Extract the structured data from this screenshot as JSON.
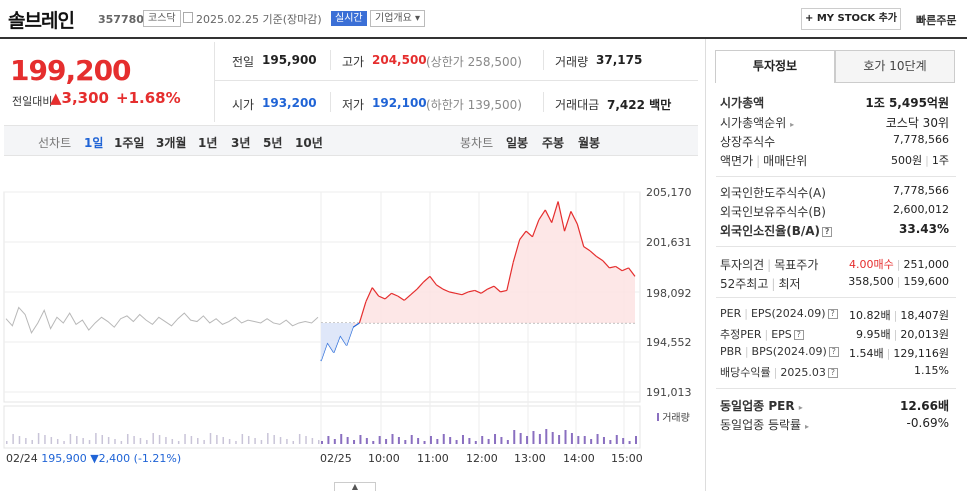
{
  "header": {
    "name": "솔브레인",
    "code": "357780",
    "market": "코스닥",
    "date_text": "2025.02.25 기준(장마감)",
    "live_label": "실시간",
    "company_menu": "기업개요",
    "mystock_label": "MY STOCK 추가",
    "quick_order_label": "빠른주문"
  },
  "quote": {
    "price": "199,200",
    "change_label": "전일대비",
    "change": "3,300",
    "change_pct": "+1.68%",
    "prev_label": "전일",
    "prev": "195,900",
    "high_label": "고가",
    "high": "204,500",
    "upper_limit": "(상한가 258,500)",
    "volume_label": "거래량",
    "volume": "37,175",
    "open_label": "시가",
    "open": "193,200",
    "low_label": "저가",
    "low": "192,100",
    "lower_limit": "(하한가 139,500)",
    "amount_label": "거래대금",
    "amount": "7,422",
    "amount_unit": "백만"
  },
  "chart_tabs": {
    "line_label": "선차트",
    "line_periods": [
      "1일",
      "1주일",
      "3개월",
      "1년",
      "3년",
      "5년",
      "10년"
    ],
    "candle_label": "봉차트",
    "candle_periods": [
      "일봉",
      "주봉",
      "월봉"
    ]
  },
  "chart_data": {
    "type": "line",
    "y_ticks": [
      "205,170",
      "201,631",
      "198,092",
      "194,552",
      "191,013"
    ],
    "ylim": [
      191013,
      205170
    ],
    "x_ticks": [
      "02/25",
      "10:00",
      "11:00",
      "12:00",
      "13:00",
      "14:00",
      "15:00"
    ],
    "baseline": 195900,
    "volume_label": "거래량",
    "prev_day_date": "02/24",
    "prev_day_close": "195,900",
    "prev_day_change": "2,400",
    "prev_day_pct": "(-1.21%)",
    "prev_day_series": [
      196200,
      195700,
      197000,
      196500,
      195200,
      195900,
      196800,
      195500,
      196300,
      195900,
      196600,
      195800,
      196100,
      195400,
      195900,
      196300,
      196000,
      195600,
      196200,
      196400,
      196000,
      196500,
      196100,
      195800,
      196300,
      196000,
      195700,
      196200,
      196600,
      196100,
      196000,
      196400,
      195900,
      196200,
      195800,
      196000,
      196300,
      195900,
      196100,
      196000,
      195900,
      196200,
      195900,
      195800,
      196100,
      195700,
      195900,
      196000,
      195900,
      196300
    ],
    "today_series": [
      193200,
      194500,
      193800,
      195000,
      194300,
      195600,
      195900,
      197400,
      198400,
      197800,
      197600,
      198000,
      197800,
      197500,
      197900,
      198300,
      198800,
      199200,
      198600,
      198300,
      198100,
      198000,
      197900,
      198100,
      198200,
      198000,
      198300,
      198500,
      198100,
      198200,
      200200,
      201800,
      202400,
      202000,
      203200,
      203900,
      203000,
      204500,
      202400,
      203800,
      202900,
      201300,
      201000,
      200600,
      200300,
      199800,
      199900,
      199600,
      199800,
      199200
    ]
  },
  "tabs_right": {
    "invest_info": "투자정보",
    "orderbook": "호가 10단계"
  },
  "invest": {
    "market_cap_label": "시가총액",
    "market_cap": "1조 5,495억원",
    "rank_label": "시가총액순위",
    "rank": "코스닥 30위",
    "shares_label": "상장주식수",
    "shares": "7,778,566",
    "face_label": "액면가",
    "unit_label": "매매단위",
    "face": "500원",
    "unit": "1주",
    "foreign_limit_label": "외국인한도주식수(A)",
    "foreign_limit": "7,778,566",
    "foreign_hold_label": "외국인보유주식수(B)",
    "foreign_hold": "2,600,012",
    "foreign_ratio_label": "외국인소진율(B/A)",
    "foreign_ratio": "33.43%",
    "opinion_label": "투자의견",
    "target_label": "목표주가",
    "opinion": "4.00매수",
    "target": "251,000",
    "wk52_label": "52주최고",
    "wk52_low_label": "최저",
    "wk52_high": "358,500",
    "wk52_low": "159,600",
    "per_label": "PER",
    "eps_label": "EPS(2024.09)",
    "per": "10.82배",
    "eps": "18,407원",
    "est_per_label": "추정PER",
    "est_eps_label": "EPS",
    "est_per": "9.95배",
    "est_eps": "20,013원",
    "pbr_label": "PBR",
    "bps_label": "BPS(2024.09)",
    "pbr": "1.54배",
    "bps": "129,116원",
    "div_label": "배당수익률",
    "div_date": "2025.03",
    "div": "1.15%",
    "sector_per_label": "동일업종 PER",
    "sector_per": "12.66배",
    "sector_rate_label": "동일업종 등락률",
    "sector_rate": "-0.69%"
  }
}
